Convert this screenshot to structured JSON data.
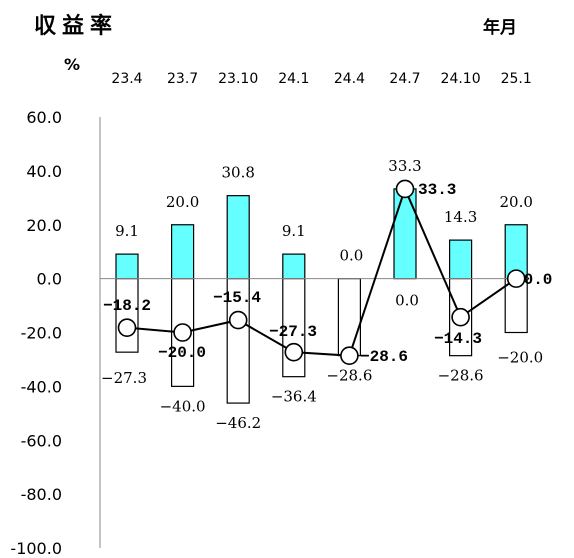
{
  "chart_data": {
    "type": "bar",
    "title": "収益率",
    "period_label": "年月",
    "unit_label": "%",
    "categories": [
      "23.4",
      "23.7",
      "23.10",
      "24.1",
      "24.4",
      "24.7",
      "24.10",
      "25.1"
    ],
    "ylim": [
      -100,
      60
    ],
    "yticks": [
      "60.0",
      "40.0",
      "20.0",
      "0.0",
      "-20.0",
      "-40.0",
      "-60.0",
      "-80.0",
      "-100.0"
    ],
    "series": [
      {
        "type": "bar",
        "color": "#66ffff",
        "values": [
          9.1,
          20.0,
          30.8,
          9.1,
          0.0,
          33.3,
          14.3,
          20.0
        ],
        "labels": [
          "9.1",
          "20.0",
          "30.8",
          "9.1",
          "0.0",
          "33.3",
          "14.3",
          "20.0"
        ]
      },
      {
        "type": "bar",
        "color": "#ffffff",
        "values": [
          -27.3,
          -40.0,
          -46.2,
          -36.4,
          -28.6,
          0.0,
          -28.6,
          -20.0
        ],
        "labels": [
          "−27.3",
          "−40.0",
          "−46.2",
          "−36.4",
          "−28.6",
          "0.0",
          "−28.6",
          "−20.0"
        ]
      },
      {
        "type": "line",
        "color": "#000000",
        "values": [
          -18.2,
          -20.0,
          -15.4,
          -27.3,
          -28.6,
          33.3,
          -14.3,
          0.0
        ],
        "labels": [
          "−18.2",
          "−20.0",
          "−15.4",
          "−27.3",
          "−28.6",
          "33.3",
          "−14.3",
          "0.0"
        ]
      }
    ]
  }
}
